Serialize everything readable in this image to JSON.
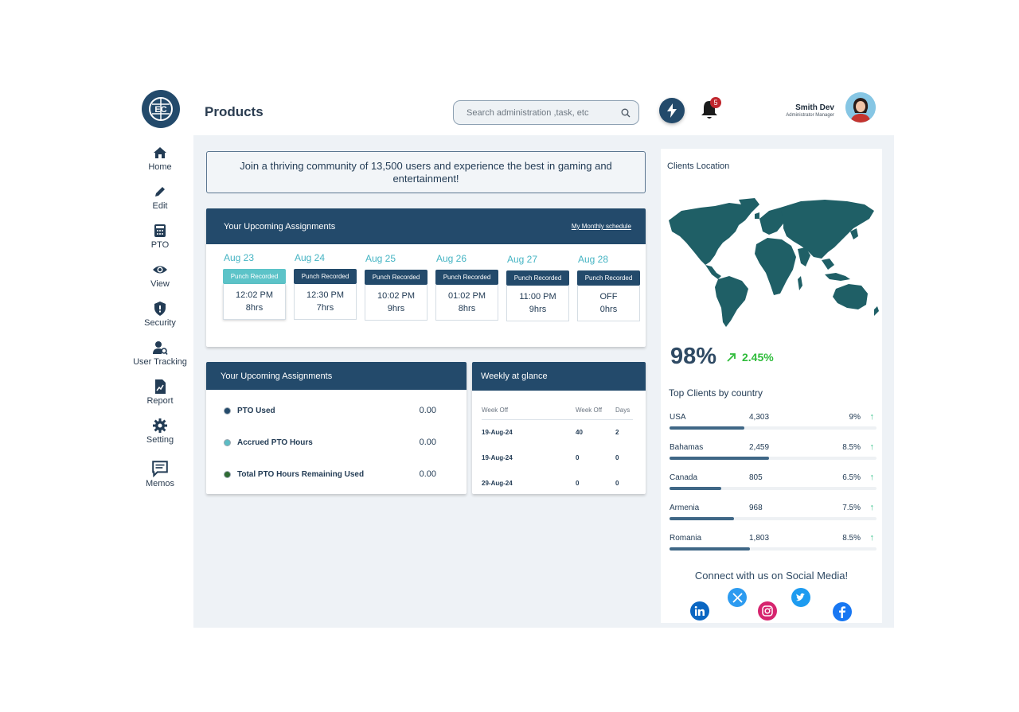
{
  "app": {
    "page_title": "Products",
    "search_placeholder": "Search administration ,task, etc",
    "notification_count": "5",
    "user": {
      "name": "Smith Dev",
      "role": "Administrator Manager"
    }
  },
  "sidebar": {
    "items": [
      {
        "label": "Home",
        "icon": "home-icon"
      },
      {
        "label": "Edit",
        "icon": "pencil-icon"
      },
      {
        "label": "PTO",
        "icon": "calculator-icon"
      },
      {
        "label": "View",
        "icon": "eye-icon"
      },
      {
        "label": "Security",
        "icon": "shield-icon"
      },
      {
        "label": "User Tracking",
        "icon": "user-search-icon"
      },
      {
        "label": "Report",
        "icon": "report-icon"
      },
      {
        "label": "Setting",
        "icon": "gear-icon"
      },
      {
        "label": "Memos",
        "icon": "chat-icon"
      }
    ]
  },
  "banner": {
    "text": "Join a thriving community of 13,500 users and experience the best in gaming and entertainment!"
  },
  "assignments": {
    "title": "Your Upcoming Assignments",
    "link": "My Monthly schedule",
    "days": [
      {
        "date": "Aug 23",
        "badge": "Punch Recorded",
        "time": "12:02 PM",
        "hours": "8hrs",
        "active": true
      },
      {
        "date": "Aug 24",
        "badge": "Punch Recorded",
        "time": "12:30 PM",
        "hours": "7hrs",
        "active": false
      },
      {
        "date": "Aug 25",
        "badge": "Punch Recorded",
        "time": "10:02 PM",
        "hours": "9hrs",
        "active": false
      },
      {
        "date": "Aug 26",
        "badge": "Punch Recorded",
        "time": "01:02 PM",
        "hours": "8hrs",
        "active": false
      },
      {
        "date": "Aug 27",
        "badge": "Punch Recorded",
        "time": "11:00 PM",
        "hours": "9hrs",
        "active": false
      },
      {
        "date": "Aug 28",
        "badge": "Punch Recorded",
        "time": "OFF",
        "hours": "0hrs",
        "active": false
      }
    ]
  },
  "pto": {
    "title": "Your Upcoming Assignments",
    "rows": [
      {
        "label": "PTO Used",
        "value": "0.00",
        "color": "#234a6b"
      },
      {
        "label": "Accrued PTO Hours",
        "value": "0.00",
        "color": "#5cbcc4"
      },
      {
        "label": "Total PTO Hours Remaining Used",
        "value": "0.00",
        "color": "#2f6b33"
      }
    ]
  },
  "weekly": {
    "title": "Weekly at glance",
    "headers": [
      "Week Off",
      "Week Off",
      "Days"
    ],
    "rows": [
      [
        "19-Aug-24",
        "40",
        "2"
      ],
      [
        "19-Aug-24",
        "0",
        "0"
      ],
      [
        "29-Aug-24",
        "0",
        "0"
      ]
    ]
  },
  "clients": {
    "title": "Clients Location",
    "percent": "98%",
    "trend": "2.45%",
    "top_title": "Top Clients by country",
    "rows": [
      {
        "country": "USA",
        "count": "4,303",
        "pct": "9%",
        "level": 0.36
      },
      {
        "country": "Bahamas",
        "count": "2,459",
        "pct": "8.5%",
        "level": 0.48
      },
      {
        "country": "Canada",
        "count": "805",
        "pct": "6.5%",
        "level": 0.25
      },
      {
        "country": "Armenia",
        "count": "968",
        "pct": "7.5%",
        "level": 0.31
      },
      {
        "country": "Romania",
        "count": "1,803",
        "pct": "8.5%",
        "level": 0.39
      }
    ]
  },
  "social": {
    "title": "Connect with us on Social Media!"
  },
  "colors": {
    "primary": "#234a6b",
    "accent": "#5cc3c8",
    "map": "#1f5f66",
    "positive": "#2fbc3b"
  }
}
